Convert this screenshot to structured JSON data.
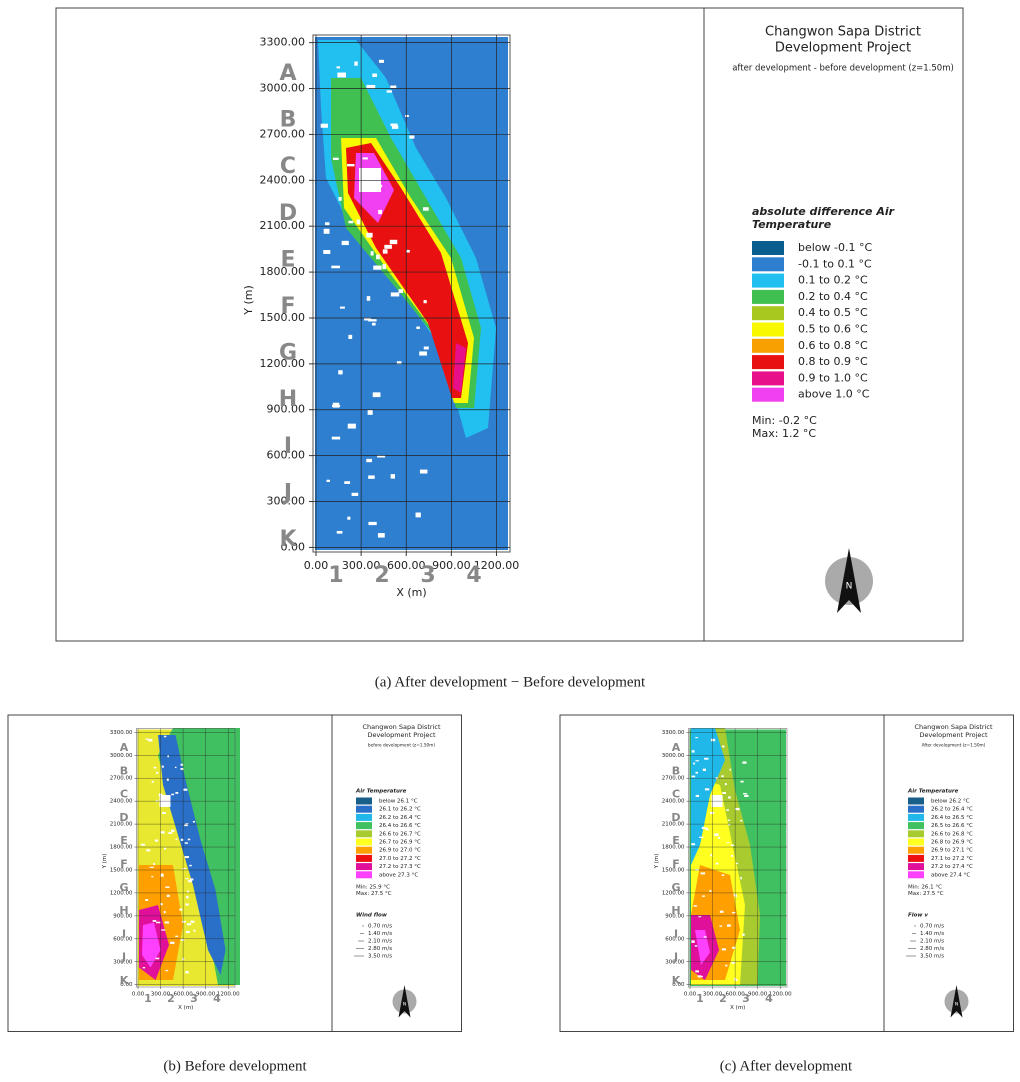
{
  "panels": [
    {
      "title_lines": [
        "Changwon Sapa District",
        "Development Project"
      ],
      "subtitle": "after development - before development (z=1.50m)",
      "x_label": "X (m)",
      "y_label": "Y (m)",
      "xlim": [
        -20,
        1290
      ],
      "ylim": [
        -30,
        3350
      ],
      "xticks": [
        {
          "value": 0,
          "label": "0.00"
        },
        {
          "value": 300,
          "label": "300.00"
        },
        {
          "value": 600,
          "label": "600.00"
        },
        {
          "value": 900,
          "label": "900.00"
        },
        {
          "value": 1200,
          "label": "1200.00"
        }
      ],
      "yticks": [
        {
          "value": 0,
          "label": "0.00"
        },
        {
          "value": 300,
          "label": "300.00"
        },
        {
          "value": 600,
          "label": "600.00"
        },
        {
          "value": 900,
          "label": "900.00"
        },
        {
          "value": 1200,
          "label": "1200.00"
        },
        {
          "value": 1500,
          "label": "1500.00"
        },
        {
          "value": 1800,
          "label": "1800.00"
        },
        {
          "value": 2100,
          "label": "2100.00"
        },
        {
          "value": 2400,
          "label": "2400.00"
        },
        {
          "value": 2700,
          "label": "2700.00"
        },
        {
          "value": 3000,
          "label": "3000.00"
        },
        {
          "value": 3300,
          "label": "3300.00"
        }
      ],
      "row_labels": [
        "A",
        "B",
        "C",
        "D",
        "E",
        "F",
        "G",
        "H",
        "I",
        "J",
        "K"
      ],
      "column_labels": [
        "1",
        "2",
        "3",
        "4"
      ],
      "legend": {
        "title_lines": [
          "absolute difference Air",
          "Temperature"
        ],
        "items": [
          {
            "label": "below -0.1 °C",
            "color": "#0b5f8e"
          },
          {
            "label": "-0.1 to 0.1 °C",
            "color": "#2f7fd0"
          },
          {
            "label": "0.1 to 0.2 °C",
            "color": "#22c0f0"
          },
          {
            "label": "0.2 to 0.4 °C",
            "color": "#40c050"
          },
          {
            "label": "0.4 to 0.5 °C",
            "color": "#a8c820"
          },
          {
            "label": "0.5 to 0.6 °C",
            "color": "#f8f800"
          },
          {
            "label": "0.6 to 0.8 °C",
            "color": "#f8a000"
          },
          {
            "label": "0.8 to 0.9 °C",
            "color": "#e81010"
          },
          {
            "label": "0.9 to 1.0 °C",
            "color": "#e8108a"
          },
          {
            "label": "above 1.0 °C",
            "color": "#f040f0"
          }
        ]
      },
      "min_label": "Min: -0.2 °C",
      "max_label": "Max: 1.2 °C",
      "north_label": "N",
      "caption": "(a)  After development − Before development"
    },
    {
      "title_lines": [
        "Changwon Sapa District",
        "Development Project"
      ],
      "subtitle": "before development (z=1.50m)",
      "x_label": "X (m)",
      "y_label": "Y (m)",
      "xlim": [
        -20,
        1290
      ],
      "ylim": [
        -30,
        3350
      ],
      "xticks": [
        {
          "value": 0,
          "label": "0.00"
        },
        {
          "value": 300,
          "label": "300.00"
        },
        {
          "value": 600,
          "label": "600.00"
        },
        {
          "value": 900,
          "label": "900.00"
        },
        {
          "value": 1200,
          "label": "1200.00"
        }
      ],
      "yticks": [
        {
          "value": 0,
          "label": "0.00"
        },
        {
          "value": 300,
          "label": "300.00"
        },
        {
          "value": 600,
          "label": "600.00"
        },
        {
          "value": 900,
          "label": "900.00"
        },
        {
          "value": 1200,
          "label": "1200.00"
        },
        {
          "value": 1500,
          "label": "1500.00"
        },
        {
          "value": 1800,
          "label": "1800.00"
        },
        {
          "value": 2100,
          "label": "2100.00"
        },
        {
          "value": 2400,
          "label": "2400.00"
        },
        {
          "value": 2700,
          "label": "2700.00"
        },
        {
          "value": 3000,
          "label": "3000.00"
        },
        {
          "value": 3300,
          "label": "3300.00"
        }
      ],
      "row_labels": [
        "A",
        "B",
        "C",
        "D",
        "E",
        "F",
        "G",
        "H",
        "I",
        "J",
        "K"
      ],
      "column_labels": [
        "1",
        "2",
        "3",
        "4"
      ],
      "legend": {
        "title_lines": [
          "Air Temperature"
        ],
        "items": [
          {
            "label": "below 26.1 °C",
            "color": "#1a5f8a"
          },
          {
            "label": "26.1 to 26.2 °C",
            "color": "#2a6fc8"
          },
          {
            "label": "26.2 to 26.4 °C",
            "color": "#20b8e8"
          },
          {
            "label": "26.4 to 26.6 °C",
            "color": "#40c060"
          },
          {
            "label": "26.6 to 26.7 °C",
            "color": "#a8cc30"
          },
          {
            "label": "26.7 to 26.9 °C",
            "color": "#ffff20"
          },
          {
            "label": "26.9 to 27.0 °C",
            "color": "#ffa000"
          },
          {
            "label": "27.0 to 27.2 °C",
            "color": "#ee1010"
          },
          {
            "label": "27.2 to 27.3 °C",
            "color": "#e0109a"
          },
          {
            "label": "above 27.3 °C",
            "color": "#ff40ff"
          }
        ]
      },
      "min_label": "Min: 25.9 °C",
      "max_label": "Max: 27.5 °C",
      "wind_legend": {
        "title": "Wind flow",
        "items": [
          "0.70 m/s",
          "1.40 m/s",
          "2.10 m/s",
          "2.80 m/s",
          "3.50 m/s"
        ]
      },
      "north_label": "N",
      "caption": "(b)  Before  development"
    },
    {
      "title_lines": [
        "Changwon Sapa District",
        "Development Project"
      ],
      "subtitle": "After development (z=1.50m)",
      "x_label": "X (m)",
      "y_label": "Y (m)",
      "xlim": [
        -20,
        1290
      ],
      "ylim": [
        -30,
        3350
      ],
      "xticks": [
        {
          "value": 0,
          "label": "0.00"
        },
        {
          "value": 300,
          "label": "300.00"
        },
        {
          "value": 600,
          "label": "600.00"
        },
        {
          "value": 900,
          "label": "900.00"
        },
        {
          "value": 1200,
          "label": "1200.00"
        }
      ],
      "yticks": [
        {
          "value": 0,
          "label": "0.00"
        },
        {
          "value": 300,
          "label": "300.00"
        },
        {
          "value": 600,
          "label": "600.00"
        },
        {
          "value": 900,
          "label": "900.00"
        },
        {
          "value": 1200,
          "label": "1200.00"
        },
        {
          "value": 1500,
          "label": "1500.00"
        },
        {
          "value": 1800,
          "label": "1800.00"
        },
        {
          "value": 2100,
          "label": "2100.00"
        },
        {
          "value": 2400,
          "label": "2400.00"
        },
        {
          "value": 2700,
          "label": "2700.00"
        },
        {
          "value": 3000,
          "label": "3000.00"
        },
        {
          "value": 3300,
          "label": "3300.00"
        }
      ],
      "row_labels": [
        "A",
        "B",
        "C",
        "D",
        "E",
        "F",
        "G",
        "H",
        "I",
        "J",
        "K"
      ],
      "column_labels": [
        "1",
        "2",
        "3",
        "4"
      ],
      "legend": {
        "title_lines": [
          "Air Temperature"
        ],
        "items": [
          {
            "label": "below 26.2 °C",
            "color": "#1a5f8a"
          },
          {
            "label": "26.2 to 26.4 °C",
            "color": "#2a6fc8"
          },
          {
            "label": "26.4 to 26.5 °C",
            "color": "#20b8e8"
          },
          {
            "label": "26.5 to 26.6 °C",
            "color": "#40c060"
          },
          {
            "label": "26.6 to 26.8 °C",
            "color": "#a8cc30"
          },
          {
            "label": "26.8 to 26.9 °C",
            "color": "#ffff20"
          },
          {
            "label": "26.9 to 27.1 °C",
            "color": "#ffa000"
          },
          {
            "label": "27.1 to 27.2 °C",
            "color": "#ee1010"
          },
          {
            "label": "27.2 to 27.4 °C",
            "color": "#e0109a"
          },
          {
            "label": "above 27.4 °C",
            "color": "#ff40ff"
          }
        ]
      },
      "min_label": "Min: 26.1 °C",
      "max_label": "Max: 27.5 °C",
      "wind_legend": {
        "title": "Flow v",
        "items": [
          "0.70 m/s",
          "1.40 m/s",
          "2.10 m/s",
          "2.80 m/s",
          "3.50 m/s"
        ]
      },
      "north_label": "N",
      "caption": "(c)  After  development"
    }
  ]
}
